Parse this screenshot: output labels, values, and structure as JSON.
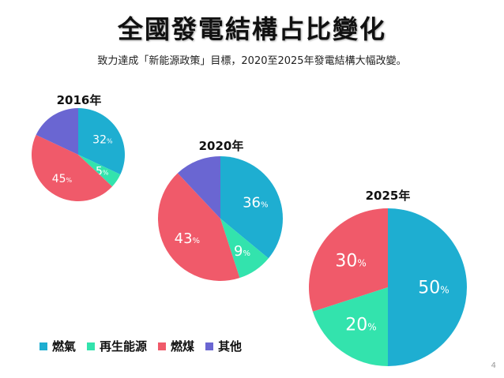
{
  "title": "全國發電結構占比變化",
  "subtitle": "致力達成「新能源政策」目標，2020至2025年發電結構大幅改變。",
  "page_number": "4",
  "colors": {
    "gas": "#1eaed1",
    "renewable": "#33e3ad",
    "coal": "#f05a6a",
    "other": "#6a66d2"
  },
  "legend": [
    {
      "label": "燃氣",
      "color": "#1eaed1"
    },
    {
      "label": "再生能源",
      "color": "#33e3ad"
    },
    {
      "label": "燃煤",
      "color": "#f05a6a"
    },
    {
      "label": "其他",
      "color": "#6a66d2"
    }
  ],
  "chart_data": [
    {
      "type": "pie",
      "title": "2016年",
      "categories": [
        "燃氣",
        "再生能源",
        "燃煤",
        "其他"
      ],
      "values": [
        32,
        5,
        45,
        18
      ],
      "labels": [
        "32",
        "5",
        "45",
        ""
      ],
      "unit": "%"
    },
    {
      "type": "pie",
      "title": "2020年",
      "categories": [
        "燃氣",
        "再生能源",
        "燃煤",
        "其他"
      ],
      "values": [
        36,
        9,
        43,
        12
      ],
      "labels": [
        "36",
        "9",
        "43",
        ""
      ],
      "unit": "%"
    },
    {
      "type": "pie",
      "title": "2025年",
      "categories": [
        "燃氣",
        "再生能源",
        "燃煤",
        "其他"
      ],
      "values": [
        50,
        20,
        30,
        0
      ],
      "labels": [
        "50",
        "20",
        "30",
        ""
      ],
      "unit": "%"
    }
  ]
}
